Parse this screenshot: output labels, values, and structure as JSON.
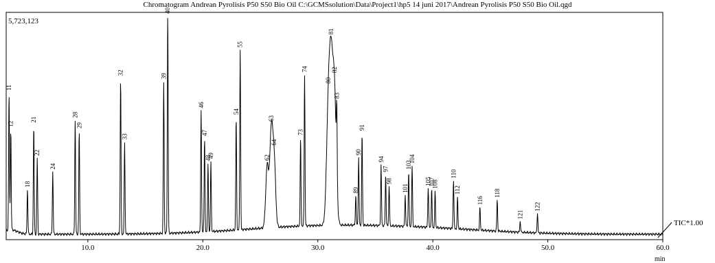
{
  "chart_data": {
    "type": "line",
    "title": "Chromatogram Andrean Pyrolisis P50 S50 Bio Oil C:\\GCMSsolution\\Data\\Project1\\hp5 14 juni 2017\\Andrean Pyrolisis P50 S50 Bio Oil.qgd",
    "max_intensity_label": "5,723,123",
    "series_label": "TIC*1.00",
    "xlabel": "min",
    "ylabel": "",
    "xlim": [
      2.9,
      60.0
    ],
    "ylim": [
      0,
      1.0
    ],
    "xticks": [
      10.0,
      20.0,
      30.0,
      40.0,
      50.0,
      60.0
    ],
    "xtick_labels": [
      "10.0",
      "20.0",
      "30.0",
      "40.0",
      "50.0",
      "60.0"
    ],
    "grid": false,
    "legend": "none",
    "line_color": "#000000",
    "peaks": [
      {
        "label": "11",
        "x": 3.15,
        "y": 0.61
      },
      {
        "label": "12",
        "x": 3.3,
        "y": 0.45
      },
      {
        "label": "18",
        "x": 4.75,
        "y": 0.2
      },
      {
        "label": "21",
        "x": 5.3,
        "y": 0.49
      },
      {
        "label": "22",
        "x": 5.6,
        "y": 0.34
      },
      {
        "label": "24",
        "x": 6.95,
        "y": 0.28
      },
      {
        "label": "28",
        "x": 8.9,
        "y": 0.51
      },
      {
        "label": "29",
        "x": 9.25,
        "y": 0.46
      },
      {
        "label": "32",
        "x": 12.85,
        "y": 0.7
      },
      {
        "label": "33",
        "x": 13.2,
        "y": 0.41
      },
      {
        "label": "39",
        "x": 16.6,
        "y": 0.68
      },
      {
        "label": "40",
        "x": 16.95,
        "y": 0.99
      },
      {
        "label": "46",
        "x": 19.85,
        "y": 0.55
      },
      {
        "label": "47",
        "x": 20.15,
        "y": 0.42
      },
      {
        "label": "48",
        "x": 20.45,
        "y": 0.3
      },
      {
        "label": "49",
        "x": 20.7,
        "y": 0.31
      },
      {
        "label": "54",
        "x": 22.9,
        "y": 0.5
      },
      {
        "label": "55",
        "x": 23.25,
        "y": 0.81
      },
      {
        "label": "62",
        "x": 25.6,
        "y": 0.28
      },
      {
        "label": "63",
        "x": 25.95,
        "y": 0.42
      },
      {
        "label": "64",
        "x": 26.2,
        "y": 0.3
      },
      {
        "label": "73",
        "x": 28.5,
        "y": 0.39
      },
      {
        "label": "74",
        "x": 28.85,
        "y": 0.68
      },
      {
        "label": "80",
        "x": 30.9,
        "y": 0.45
      },
      {
        "label": "81",
        "x": 31.15,
        "y": 0.63
      },
      {
        "label": "82",
        "x": 31.45,
        "y": 0.57
      },
      {
        "label": "83",
        "x": 31.65,
        "y": 0.3
      },
      {
        "label": "89",
        "x": 33.3,
        "y": 0.13
      },
      {
        "label": "90",
        "x": 33.55,
        "y": 0.3
      },
      {
        "label": "91",
        "x": 33.85,
        "y": 0.41
      },
      {
        "label": "94",
        "x": 35.5,
        "y": 0.27
      },
      {
        "label": "97",
        "x": 35.9,
        "y": 0.23
      },
      {
        "label": "98",
        "x": 36.2,
        "y": 0.18
      },
      {
        "label": "101",
        "x": 37.6,
        "y": 0.14
      },
      {
        "label": "103",
        "x": 37.9,
        "y": 0.25
      },
      {
        "label": "104",
        "x": 38.2,
        "y": 0.27
      },
      {
        "label": "105",
        "x": 39.6,
        "y": 0.18
      },
      {
        "label": "107",
        "x": 39.9,
        "y": 0.17
      },
      {
        "label": "108",
        "x": 40.2,
        "y": 0.16
      },
      {
        "label": "110",
        "x": 41.8,
        "y": 0.22
      },
      {
        "label": "112",
        "x": 42.15,
        "y": 0.14
      },
      {
        "label": "116",
        "x": 44.1,
        "y": 0.1
      },
      {
        "label": "118",
        "x": 45.6,
        "y": 0.14
      },
      {
        "label": "121",
        "x": 47.6,
        "y": 0.05
      },
      {
        "label": "122",
        "x": 49.1,
        "y": 0.09
      }
    ]
  }
}
